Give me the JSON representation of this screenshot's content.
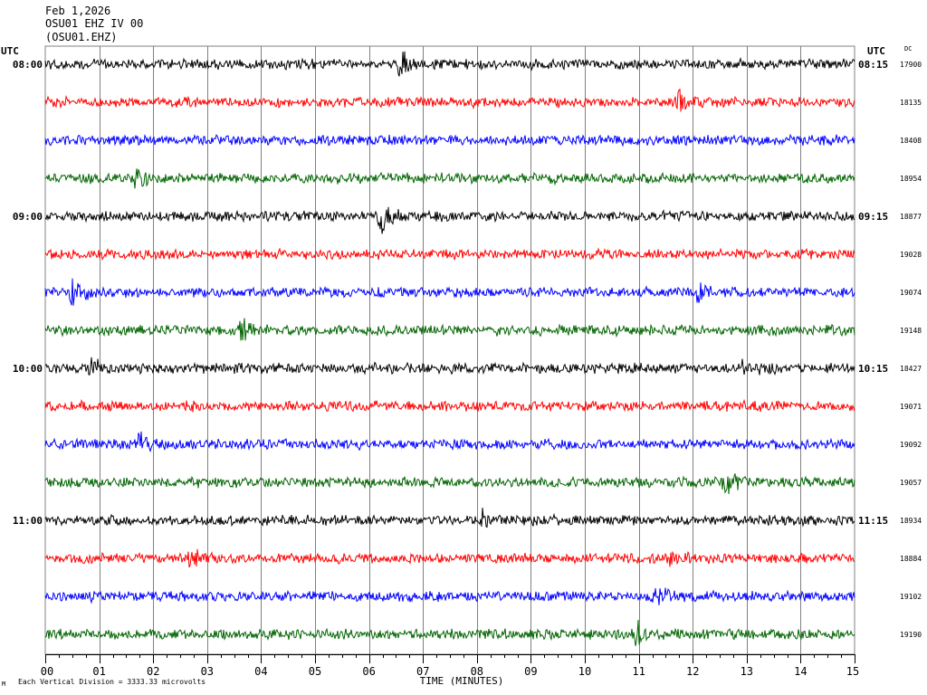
{
  "header": {
    "date": "Feb 1,2026",
    "station": "OSU01 EHZ IV 00",
    "channel_code": "(OSU01.EHZ)"
  },
  "left_timezone": "UTC",
  "right_timezone": "UTC",
  "dc_label": "DC",
  "footer": {
    "scale_note": "Each Vertical Division = 3333.33 microvolts",
    "corner_mark": "M"
  },
  "colors": {
    "trace_cycle": [
      "#000000",
      "#ff0000",
      "#0000ff",
      "#006400"
    ],
    "grid": "#808080",
    "axis": "#000000"
  },
  "chart_data": {
    "type": "line",
    "title": "Feb 1,2026 OSU01 EHZ IV 00 (OSU01.EHZ)",
    "xlabel": "TIME (MINUTES)",
    "ylabel": "",
    "x_range": [
      0,
      15
    ],
    "x_ticks": [
      "00",
      "01",
      "02",
      "03",
      "04",
      "05",
      "06",
      "07",
      "08",
      "09",
      "10",
      "11",
      "12",
      "13",
      "14",
      "15"
    ],
    "grid": true,
    "vertical_division_microvolts": 3333.33,
    "rows": [
      {
        "left_label": "08:00",
        "right_label": "08:15",
        "dc": "17900",
        "events": [
          {
            "minute": 6.55,
            "amp": 2.6
          }
        ]
      },
      {
        "left_label": "",
        "right_label": "",
        "dc": "18135",
        "events": [
          {
            "minute": 11.7,
            "amp": 2.4
          }
        ]
      },
      {
        "left_label": "",
        "right_label": "",
        "dc": "18408",
        "events": []
      },
      {
        "left_label": "",
        "right_label": "",
        "dc": "18954",
        "events": [
          {
            "minute": 1.7,
            "amp": 2.2
          }
        ]
      },
      {
        "left_label": "09:00",
        "right_label": "09:15",
        "dc": "18877",
        "events": [
          {
            "minute": 6.2,
            "amp": 2.5
          }
        ]
      },
      {
        "left_label": "",
        "right_label": "",
        "dc": "19028",
        "events": []
      },
      {
        "left_label": "",
        "right_label": "",
        "dc": "19074",
        "events": [
          {
            "minute": 0.5,
            "amp": 2.3
          },
          {
            "minute": 12.1,
            "amp": 1.3
          }
        ]
      },
      {
        "left_label": "",
        "right_label": "",
        "dc": "19148",
        "events": [
          {
            "minute": 3.6,
            "amp": 2.0
          }
        ]
      },
      {
        "left_label": "10:00",
        "right_label": "10:15",
        "dc": "18427",
        "events": [
          {
            "minute": 0.85,
            "amp": 2.6
          },
          {
            "minute": 12.95,
            "amp": 1.4
          }
        ]
      },
      {
        "left_label": "",
        "right_label": "",
        "dc": "19071",
        "events": []
      },
      {
        "left_label": "",
        "right_label": "",
        "dc": "19092",
        "events": [
          {
            "minute": 1.75,
            "amp": 2.0
          }
        ]
      },
      {
        "left_label": "",
        "right_label": "",
        "dc": "19057",
        "events": [
          {
            "minute": 12.6,
            "amp": 2.0
          }
        ]
      },
      {
        "left_label": "11:00",
        "right_label": "11:15",
        "dc": "18934",
        "events": [
          {
            "minute": 8.1,
            "amp": 1.3
          }
        ]
      },
      {
        "left_label": "",
        "right_label": "",
        "dc": "18884",
        "events": [
          {
            "minute": 2.7,
            "amp": 1.6
          },
          {
            "minute": 11.6,
            "amp": 2.3
          }
        ]
      },
      {
        "left_label": "",
        "right_label": "",
        "dc": "19102",
        "events": [
          {
            "minute": 11.3,
            "amp": 2.0
          }
        ]
      },
      {
        "left_label": "",
        "right_label": "",
        "dc": "19190",
        "events": [
          {
            "minute": 10.9,
            "amp": 2.3
          }
        ]
      }
    ]
  }
}
